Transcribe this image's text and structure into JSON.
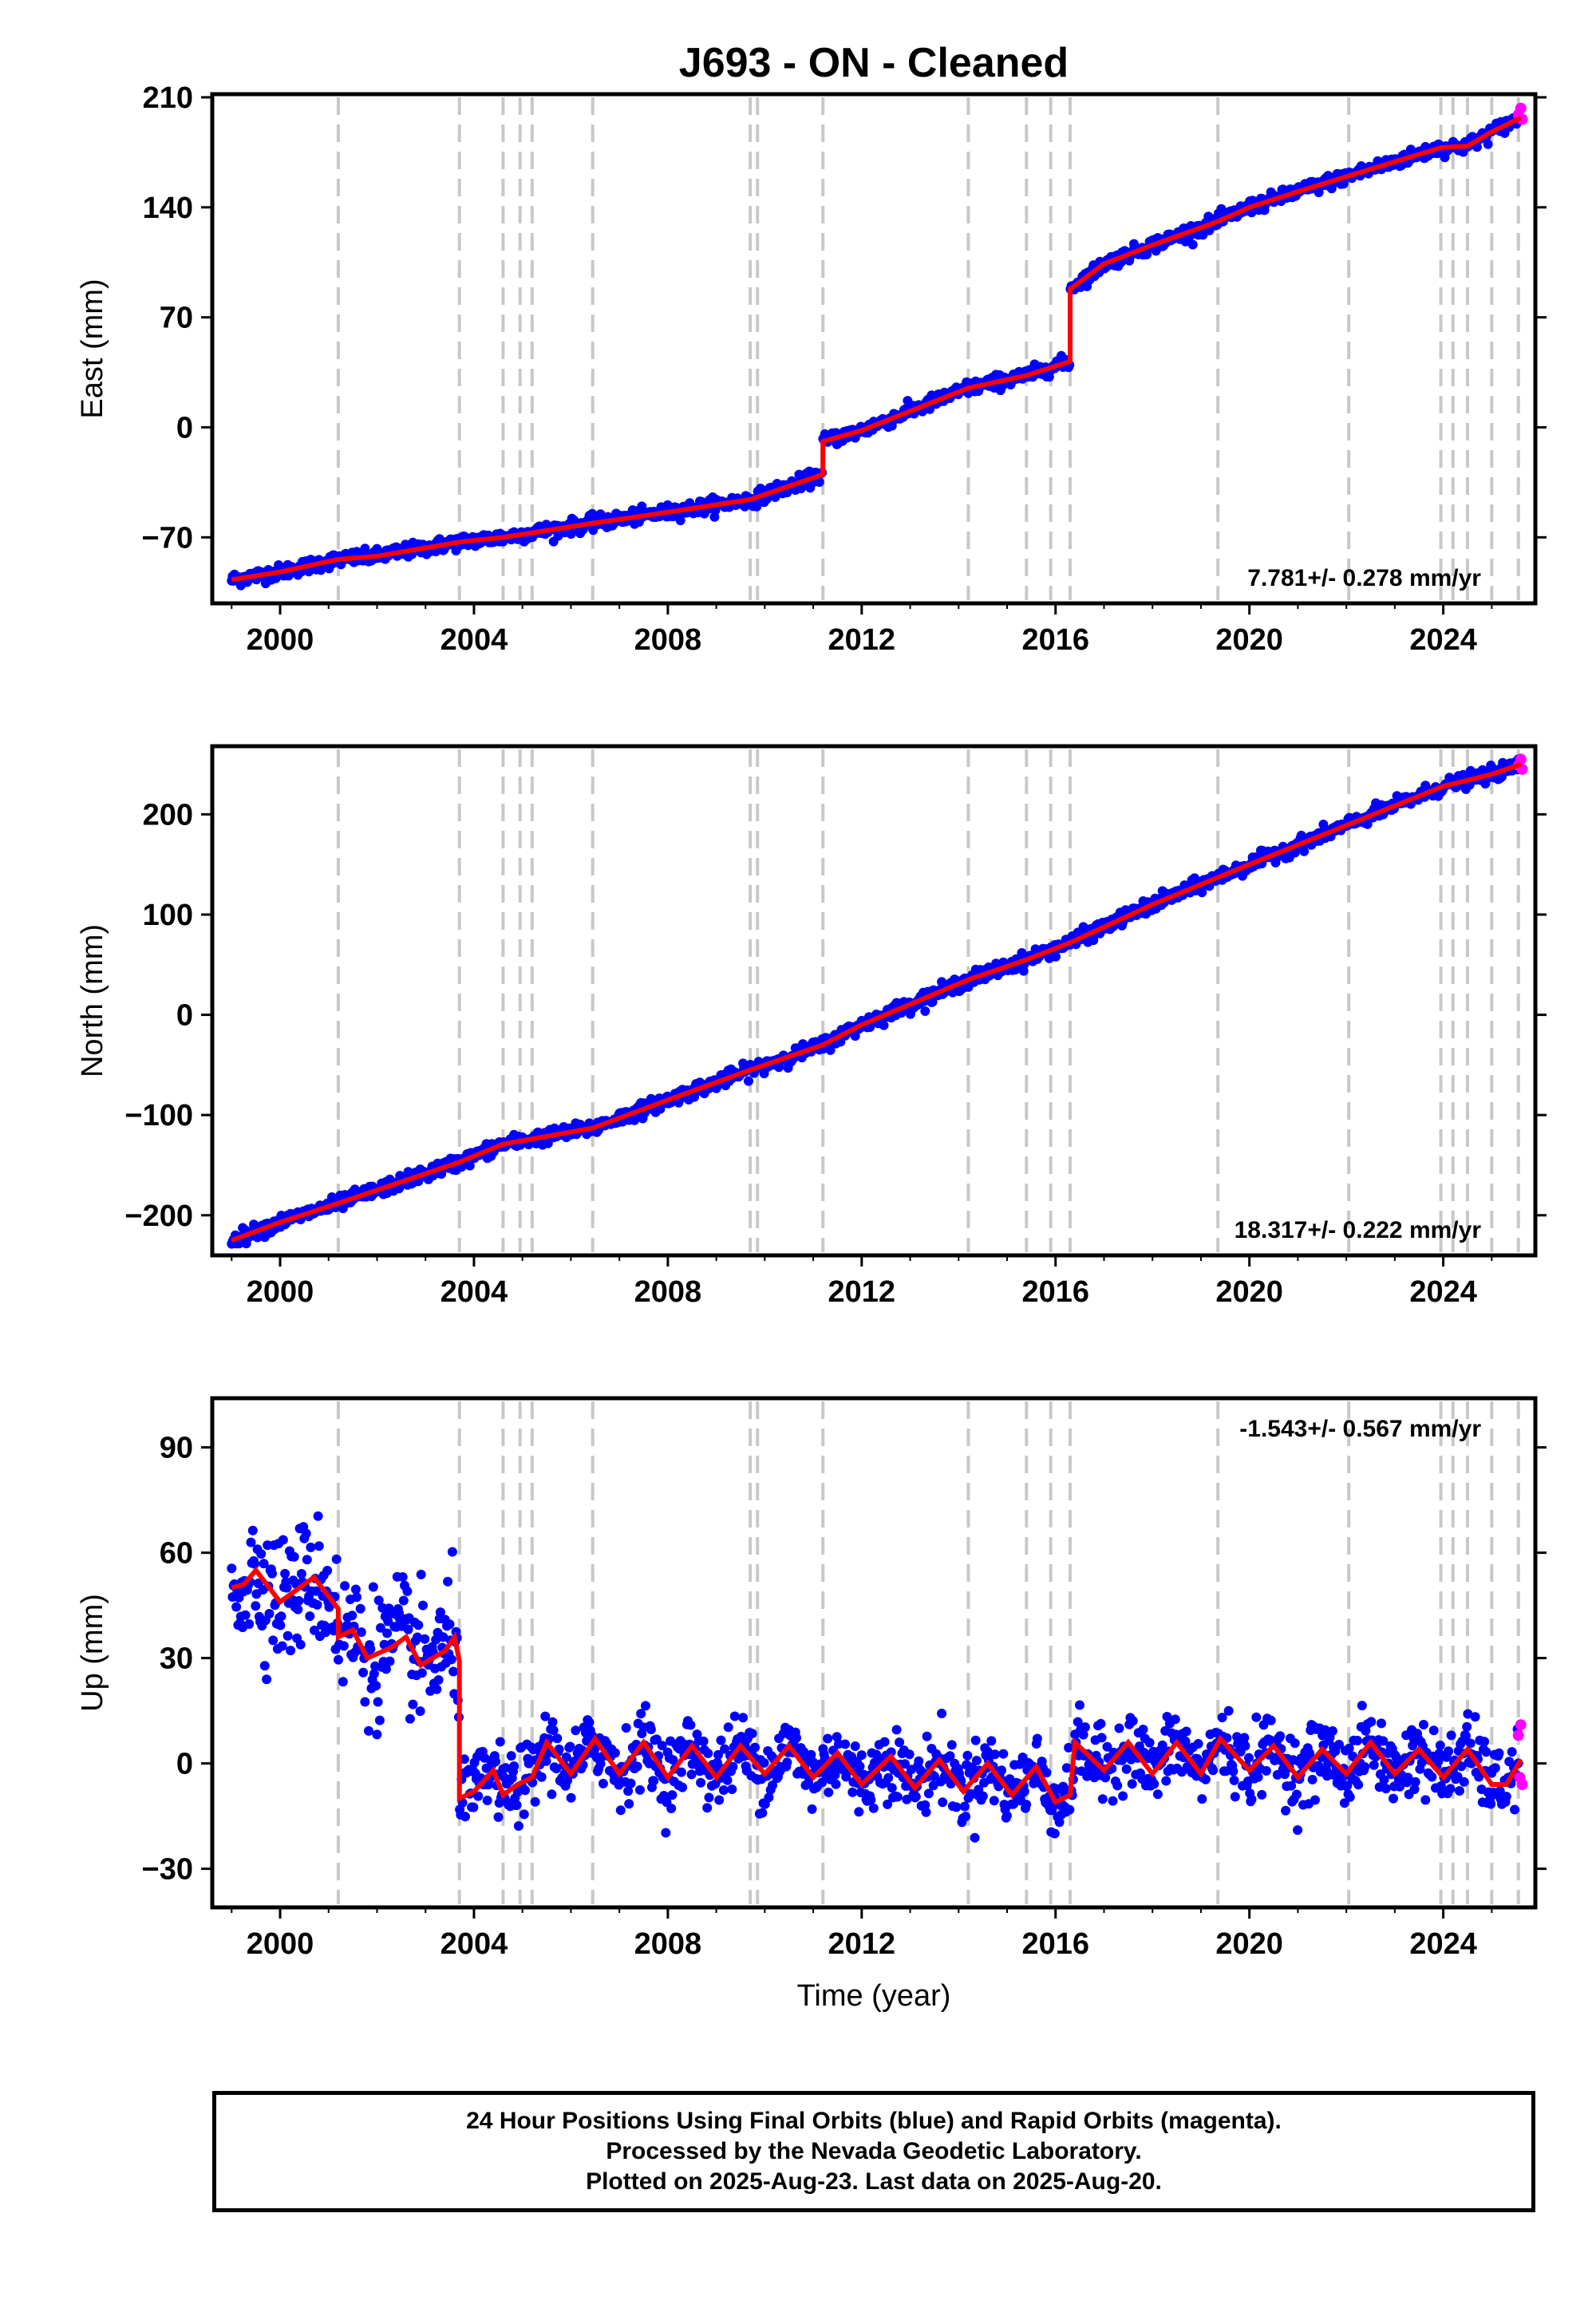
{
  "title": "J693  - ON - Cleaned",
  "xlabel": "Time (year)",
  "footer": {
    "line1": "24 Hour Positions Using Final Orbits (blue) and Rapid Orbits (magenta).",
    "line2": "Processed by the Nevada Geodetic Laboratory.",
    "line3": "Plotted on 2025-Aug-23. Last data on 2025-Aug-20."
  },
  "colors": {
    "final_orbits": "#0000ff",
    "rapid_orbits": "#ff00ff",
    "model": "#ff0000",
    "event_lines": "#c8c8c8",
    "frame": "#000000"
  },
  "chart_data": [
    {
      "type": "scatter",
      "ylabel": "East (mm)",
      "xlim": [
        1998.6,
        2025.9
      ],
      "ylim": [
        -112,
        212
      ],
      "x_ticks": [
        2000,
        2004,
        2008,
        2012,
        2016,
        2020,
        2024
      ],
      "y_ticks": [
        -70,
        0,
        70,
        140,
        210
      ],
      "y_tick_labels": [
        "−70",
        "0",
        "70",
        "140",
        "210"
      ],
      "rate_text": "7.781+/- 0.278 mm/yr",
      "rate_position": "bottom-right",
      "event_lines": [
        2001.2,
        2003.7,
        2004.6,
        2004.95,
        2005.2,
        2006.45,
        2009.7,
        2009.85,
        2011.2,
        2014.2,
        2015.4,
        2015.9,
        2016.3,
        2019.35,
        2022.05,
        2023.95,
        2024.2,
        2024.5,
        2025.0,
        2025.55
      ],
      "model": [
        {
          "x": 1999.0,
          "y": -97
        },
        {
          "x": 2000.0,
          "y": -92
        },
        {
          "x": 2001.2,
          "y": -84
        },
        {
          "x": 2001.2,
          "y": -84
        },
        {
          "x": 2002.0,
          "y": -82
        },
        {
          "x": 2003.7,
          "y": -73
        },
        {
          "x": 2004.6,
          "y": -70
        },
        {
          "x": 2006.45,
          "y": -61
        },
        {
          "x": 2008.0,
          "y": -54
        },
        {
          "x": 2009.7,
          "y": -46
        },
        {
          "x": 2011.2,
          "y": -30
        },
        {
          "x": 2011.2,
          "y": -9
        },
        {
          "x": 2012.0,
          "y": -2
        },
        {
          "x": 2014.2,
          "y": 25
        },
        {
          "x": 2015.4,
          "y": 33
        },
        {
          "x": 2016.3,
          "y": 42
        },
        {
          "x": 2016.3,
          "y": 88
        },
        {
          "x": 2017.0,
          "y": 104
        },
        {
          "x": 2018.0,
          "y": 116
        },
        {
          "x": 2019.35,
          "y": 131
        },
        {
          "x": 2020.0,
          "y": 140
        },
        {
          "x": 2021.0,
          "y": 150
        },
        {
          "x": 2022.05,
          "y": 160
        },
        {
          "x": 2023.95,
          "y": 178
        },
        {
          "x": 2024.5,
          "y": 179
        },
        {
          "x": 2025.0,
          "y": 188
        },
        {
          "x": 2025.6,
          "y": 197
        }
      ],
      "rapid_points": [
        {
          "x": 2025.55,
          "y": 199
        },
        {
          "x": 2025.6,
          "y": 203
        },
        {
          "x": 2025.63,
          "y": 196
        }
      ]
    },
    {
      "type": "scatter",
      "ylabel": "North (mm)",
      "xlim": [
        1998.6,
        2025.9
      ],
      "ylim": [
        -240,
        268
      ],
      "x_ticks": [
        2000,
        2004,
        2008,
        2012,
        2016,
        2020,
        2024
      ],
      "y_ticks": [
        -200,
        -100,
        0,
        100,
        200
      ],
      "y_tick_labels": [
        "−200",
        "−100",
        "0",
        "100",
        "200"
      ],
      "rate_text": "18.317+/- 0.222 mm/yr",
      "rate_position": "bottom-right",
      "event_lines": [
        2001.2,
        2003.7,
        2004.6,
        2004.95,
        2005.2,
        2006.45,
        2009.7,
        2009.85,
        2011.2,
        2014.2,
        2015.4,
        2015.9,
        2016.3,
        2019.35,
        2022.05,
        2023.95,
        2024.2,
        2024.5,
        2025.0,
        2025.55
      ],
      "model": [
        {
          "x": 1999.0,
          "y": -225
        },
        {
          "x": 2000.0,
          "y": -207
        },
        {
          "x": 2001.2,
          "y": -188
        },
        {
          "x": 2003.7,
          "y": -147
        },
        {
          "x": 2004.6,
          "y": -129
        },
        {
          "x": 2006.45,
          "y": -113
        },
        {
          "x": 2008.0,
          "y": -85
        },
        {
          "x": 2009.7,
          "y": -55
        },
        {
          "x": 2011.2,
          "y": -30
        },
        {
          "x": 2012.0,
          "y": -10
        },
        {
          "x": 2014.2,
          "y": 35
        },
        {
          "x": 2015.4,
          "y": 55
        },
        {
          "x": 2016.3,
          "y": 72
        },
        {
          "x": 2018.0,
          "y": 110
        },
        {
          "x": 2020.0,
          "y": 150
        },
        {
          "x": 2022.05,
          "y": 190
        },
        {
          "x": 2024.0,
          "y": 228
        },
        {
          "x": 2025.0,
          "y": 240
        },
        {
          "x": 2025.6,
          "y": 250
        }
      ],
      "rapid_points": [
        {
          "x": 2025.55,
          "y": 249
        },
        {
          "x": 2025.6,
          "y": 255
        },
        {
          "x": 2025.63,
          "y": 245
        }
      ]
    },
    {
      "type": "scatter",
      "ylabel": "Up (mm)",
      "xlim": [
        1998.6,
        2025.9
      ],
      "ylim": [
        -41,
        104
      ],
      "x_ticks": [
        2000,
        2004,
        2008,
        2012,
        2016,
        2020,
        2024
      ],
      "y_ticks": [
        -30,
        0,
        30,
        60,
        90
      ],
      "y_tick_labels": [
        "−30",
        "0",
        "30",
        "60",
        "90"
      ],
      "rate_text": "-1.543+/- 0.567 mm/yr",
      "rate_position": "top-right",
      "event_lines": [
        2001.2,
        2003.7,
        2004.6,
        2004.95,
        2005.2,
        2006.45,
        2009.7,
        2009.85,
        2011.2,
        2014.2,
        2015.4,
        2015.9,
        2016.3,
        2019.35,
        2022.05,
        2023.95,
        2024.2,
        2024.5,
        2025.0,
        2025.55
      ],
      "model": [
        {
          "x": 1999.0,
          "y": 50
        },
        {
          "x": 1999.25,
          "y": 51
        },
        {
          "x": 1999.5,
          "y": 55
        },
        {
          "x": 2000.0,
          "y": 46
        },
        {
          "x": 2000.7,
          "y": 53
        },
        {
          "x": 2001.2,
          "y": 44
        },
        {
          "x": 2001.2,
          "y": 36
        },
        {
          "x": 2001.5,
          "y": 38
        },
        {
          "x": 2001.8,
          "y": 30
        },
        {
          "x": 2002.3,
          "y": 33
        },
        {
          "x": 2002.6,
          "y": 36
        },
        {
          "x": 2002.9,
          "y": 28
        },
        {
          "x": 2003.4,
          "y": 32
        },
        {
          "x": 2003.6,
          "y": 36
        },
        {
          "x": 2003.7,
          "y": 29
        },
        {
          "x": 2003.7,
          "y": -10
        },
        {
          "x": 2004.0,
          "y": -8
        },
        {
          "x": 2004.4,
          "y": -2
        },
        {
          "x": 2004.6,
          "y": -9
        },
        {
          "x": 2004.9,
          "y": -6
        },
        {
          "x": 2005.2,
          "y": -4
        },
        {
          "x": 2005.5,
          "y": 6
        },
        {
          "x": 2006.0,
          "y": -3
        },
        {
          "x": 2006.5,
          "y": 7
        },
        {
          "x": 2007.0,
          "y": -3
        },
        {
          "x": 2007.5,
          "y": 6
        },
        {
          "x": 2008.0,
          "y": -4
        },
        {
          "x": 2008.5,
          "y": 5
        },
        {
          "x": 2009.0,
          "y": -4
        },
        {
          "x": 2009.5,
          "y": 5
        },
        {
          "x": 2010.0,
          "y": -3
        },
        {
          "x": 2010.5,
          "y": 5
        },
        {
          "x": 2011.0,
          "y": -4
        },
        {
          "x": 2011.5,
          "y": 3
        },
        {
          "x": 2012.0,
          "y": -6
        },
        {
          "x": 2012.6,
          "y": 2
        },
        {
          "x": 2013.1,
          "y": -7
        },
        {
          "x": 2013.6,
          "y": 1
        },
        {
          "x": 2014.1,
          "y": -8
        },
        {
          "x": 2014.6,
          "y": 0
        },
        {
          "x": 2015.1,
          "y": -9
        },
        {
          "x": 2015.6,
          "y": -1
        },
        {
          "x": 2016.0,
          "y": -11
        },
        {
          "x": 2016.3,
          "y": -9
        },
        {
          "x": 2016.4,
          "y": 6
        },
        {
          "x": 2017.0,
          "y": -2
        },
        {
          "x": 2017.5,
          "y": 6
        },
        {
          "x": 2018.0,
          "y": -3
        },
        {
          "x": 2018.5,
          "y": 6
        },
        {
          "x": 2019.0,
          "y": -3
        },
        {
          "x": 2019.4,
          "y": 7
        },
        {
          "x": 2020.0,
          "y": -2
        },
        {
          "x": 2020.5,
          "y": 5
        },
        {
          "x": 2021.0,
          "y": -4
        },
        {
          "x": 2021.5,
          "y": 4
        },
        {
          "x": 2022.0,
          "y": -3
        },
        {
          "x": 2022.5,
          "y": 6
        },
        {
          "x": 2023.0,
          "y": -3
        },
        {
          "x": 2023.5,
          "y": 4
        },
        {
          "x": 2024.0,
          "y": -4
        },
        {
          "x": 2024.5,
          "y": 4
        },
        {
          "x": 2025.0,
          "y": -6
        },
        {
          "x": 2025.3,
          "y": -6
        },
        {
          "x": 2025.6,
          "y": 1
        }
      ],
      "rapid_points": [
        {
          "x": 2025.55,
          "y": 8
        },
        {
          "x": 2025.58,
          "y": -4
        },
        {
          "x": 2025.6,
          "y": 11
        },
        {
          "x": 2025.63,
          "y": -6
        }
      ]
    }
  ]
}
